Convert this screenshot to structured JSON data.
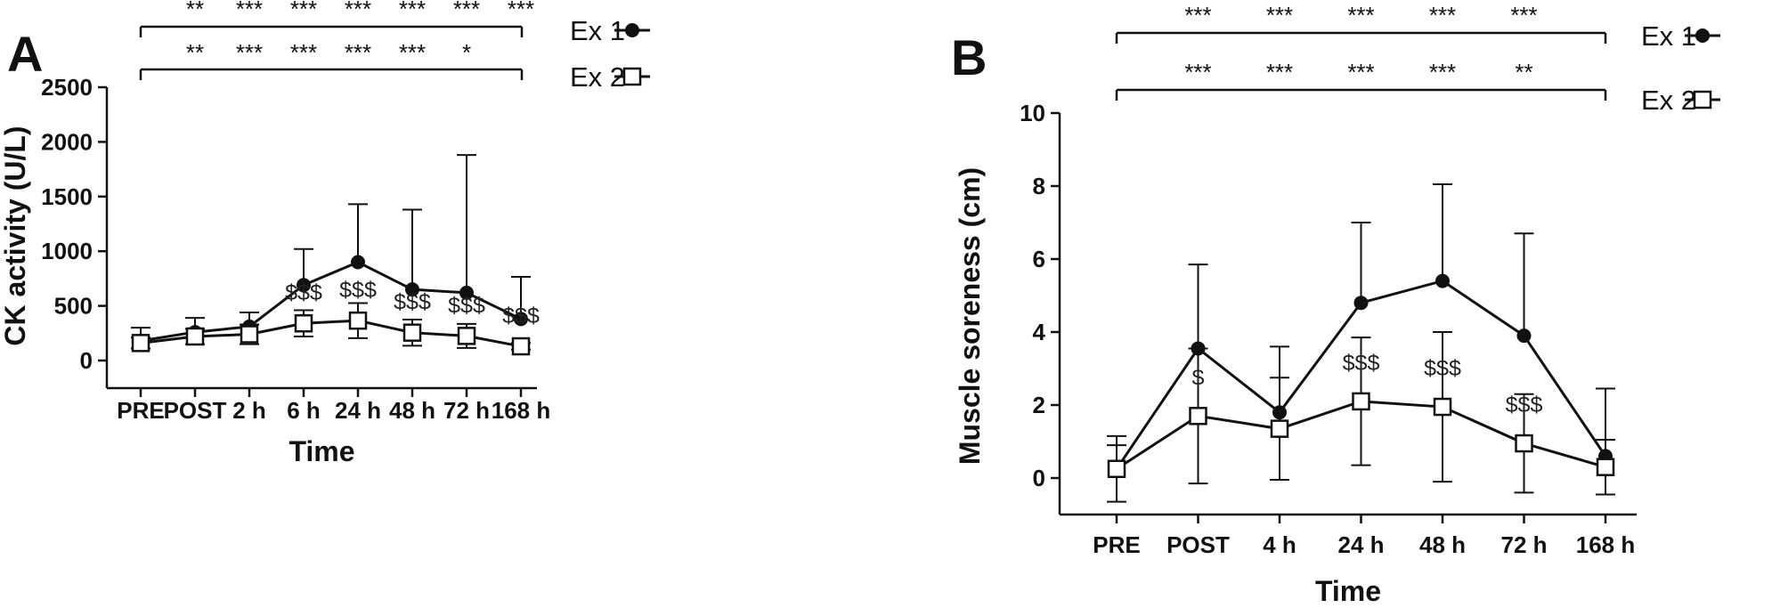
{
  "chart_data": [
    {
      "panel": "A",
      "type": "line",
      "xlabel": "Time",
      "ylabel": "CK activity (U/L)",
      "categories": [
        "PRE",
        "POST",
        "2 h",
        "6 h",
        "24 h",
        "48 h",
        "72 h",
        "168 h"
      ],
      "ylim": [
        -250,
        2500
      ],
      "yticks": [
        "0",
        "500",
        "1000",
        "1500",
        "2000",
        "2500"
      ],
      "grid": false,
      "legend_position": "top-right",
      "series": [
        {
          "name": "Ex 1",
          "marker": "filled-circle",
          "values": [
            180,
            260,
            310,
            690,
            900,
            650,
            620,
            380
          ],
          "error": [
            120,
            130,
            130,
            330,
            530,
            730,
            1260,
            385
          ]
        },
        {
          "name": "Ex 2",
          "marker": "open-square",
          "values": [
            160,
            220,
            240,
            340,
            365,
            255,
            225,
            130
          ],
          "error": [
            50,
            70,
            90,
            120,
            160,
            120,
            110,
            30
          ]
        }
      ],
      "sig_ex1": [
        "",
        "**",
        "***",
        "***",
        "***",
        "***",
        "***",
        "***"
      ],
      "sig_ex2": [
        "",
        "**",
        "***",
        "***",
        "***",
        "***",
        "*",
        ""
      ],
      "between_groups": [
        "",
        "",
        "",
        "$$$",
        "$$$",
        "$$$",
        "$$$",
        "$$$"
      ]
    },
    {
      "panel": "B",
      "type": "line",
      "xlabel": "Time",
      "ylabel": "Muscle soreness (cm)",
      "categories": [
        "PRE",
        "POST",
        "4 h",
        "24 h",
        "48 h",
        "72 h",
        "168 h"
      ],
      "ylim": [
        -1,
        10
      ],
      "yticks": [
        "0",
        "2",
        "4",
        "6",
        "8",
        "10"
      ],
      "grid": false,
      "legend_position": "top-right",
      "series": [
        {
          "name": "Ex 1",
          "marker": "filled-circle",
          "values": [
            0.25,
            3.55,
            1.8,
            4.8,
            5.4,
            3.9,
            0.6
          ],
          "error": [
            0.65,
            2.3,
            1.8,
            2.2,
            2.65,
            2.8,
            1.85
          ]
        },
        {
          "name": "Ex 2",
          "marker": "open-square",
          "values": [
            0.25,
            1.7,
            1.35,
            2.1,
            1.95,
            0.95,
            0.3
          ],
          "error": [
            0.9,
            1.85,
            1.4,
            1.75,
            2.05,
            1.35,
            0.75
          ]
        }
      ],
      "sig_ex1": [
        "",
        "***",
        "***",
        "***",
        "***",
        "***",
        ""
      ],
      "sig_ex2": [
        "",
        "***",
        "***",
        "***",
        "***",
        "**",
        ""
      ],
      "between_groups": [
        "",
        "$",
        "",
        "$$$",
        "$$$",
        "$$$",
        ""
      ]
    }
  ]
}
